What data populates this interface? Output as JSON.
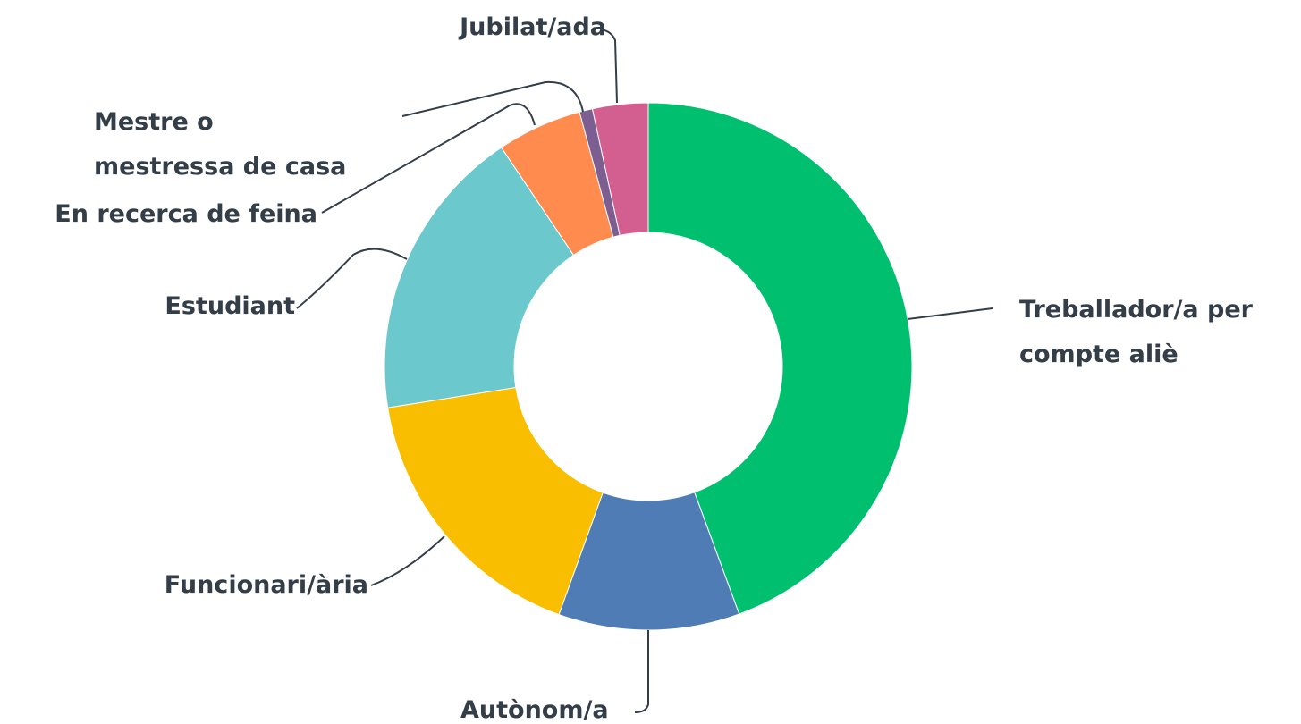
{
  "chart_data": {
    "type": "pie",
    "categories": [
      "Treballador/a per compte aliè",
      "Autònom/a",
      "Funcionari/ària",
      "Estudiant",
      "En recerca de feina",
      "Mestre o mestressa de casa",
      "Jubilat/ada"
    ],
    "values": [
      44.4,
      11.1,
      17.0,
      18.1,
      5.2,
      0.8,
      3.4
    ],
    "colors": [
      "#00bf6f",
      "#507cb6",
      "#f9be00",
      "#6bc8cd",
      "#ff8b4f",
      "#7d5e90",
      "#d25f90"
    ],
    "donut": true
  }
}
